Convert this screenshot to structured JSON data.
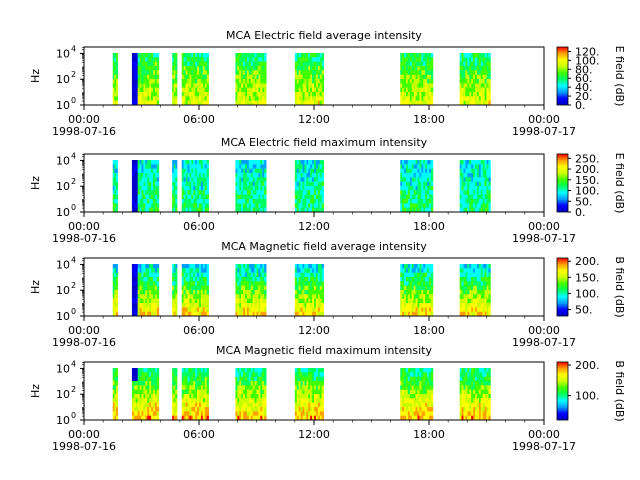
{
  "chart_data": [
    {
      "type": "heatmap",
      "title": "MCA  Electric field average intensity",
      "ylabel": "Hz",
      "colorbar_label": "E field (dB)",
      "colorbar_ticks": [
        "0.",
        "20.",
        "40.",
        "60.",
        "80.",
        "100.",
        "120."
      ],
      "colorbar_range": [
        0,
        130
      ],
      "y_ticks": [
        "10^0",
        "10^2",
        "10^4"
      ],
      "ylim_log10": [
        0,
        4.5
      ],
      "x_ticks": [
        {
          "time": "00:00",
          "date": "1998-07-16"
        },
        {
          "time": "06:00",
          "date": ""
        },
        {
          "time": "12:00",
          "date": ""
        },
        {
          "time": "18:00",
          "date": ""
        },
        {
          "time": "00:00",
          "date": "1998-07-17"
        }
      ],
      "data_intervals_hours": [
        [
          1.5,
          1.75
        ],
        [
          2.5,
          3.9
        ],
        [
          4.6,
          4.85
        ],
        [
          5.1,
          6.5
        ],
        [
          7.9,
          9.5
        ],
        [
          11.0,
          12.5
        ],
        [
          16.5,
          18.2
        ],
        [
          19.6,
          21.2
        ]
      ],
      "level": "mid-high, ~60 dB with bursts to 120 dB"
    },
    {
      "type": "heatmap",
      "title": "MCA  Electric field maximum intensity",
      "ylabel": "Hz",
      "colorbar_label": "E field (dB)",
      "colorbar_ticks": [
        "0.",
        "50.",
        "100.",
        "150.",
        "200.",
        "250."
      ],
      "colorbar_range": [
        0,
        270
      ],
      "y_ticks": [
        "10^0",
        "10^2",
        "10^4"
      ],
      "ylim_log10": [
        0,
        4.5
      ],
      "x_ticks": [
        {
          "time": "00:00",
          "date": "1998-07-16"
        },
        {
          "time": "06:00",
          "date": ""
        },
        {
          "time": "12:00",
          "date": ""
        },
        {
          "time": "18:00",
          "date": ""
        },
        {
          "time": "00:00",
          "date": "1998-07-17"
        }
      ],
      "data_intervals_hours": [
        [
          1.5,
          1.75
        ],
        [
          2.5,
          3.9
        ],
        [
          4.6,
          4.85
        ],
        [
          5.1,
          6.5
        ],
        [
          7.9,
          9.5
        ],
        [
          11.0,
          12.5
        ],
        [
          16.5,
          18.2
        ],
        [
          19.6,
          21.2
        ]
      ],
      "level": "mostly cyan-green, ~80-130 dB"
    },
    {
      "type": "heatmap",
      "title": "MCA  Magnetic field average intensity",
      "ylabel": "Hz",
      "colorbar_label": "B field (dB)",
      "colorbar_ticks": [
        "50.",
        "100.",
        "150.",
        "200."
      ],
      "colorbar_range": [
        30,
        210
      ],
      "y_ticks": [
        "10^0",
        "10^2",
        "10^4"
      ],
      "ylim_log10": [
        0,
        4.5
      ],
      "x_ticks": [
        {
          "time": "00:00",
          "date": "1998-07-16"
        },
        {
          "time": "06:00",
          "date": ""
        },
        {
          "time": "12:00",
          "date": ""
        },
        {
          "time": "18:00",
          "date": ""
        },
        {
          "time": "00:00",
          "date": "1998-07-17"
        }
      ],
      "data_intervals_hours": [
        [
          1.5,
          1.75
        ],
        [
          2.5,
          3.9
        ],
        [
          4.6,
          4.85
        ],
        [
          5.1,
          6.5
        ],
        [
          7.9,
          9.5
        ],
        [
          11.0,
          12.5
        ],
        [
          16.5,
          18.2
        ],
        [
          19.6,
          21.2
        ]
      ],
      "level": "cyan at high freq, green-yellow at low freq"
    },
    {
      "type": "heatmap",
      "title": "MCA  Magnetic field maximum intensity",
      "ylabel": "Hz",
      "colorbar_label": "B field (dB)",
      "colorbar_ticks": [
        "100.",
        "200."
      ],
      "colorbar_range": [
        20,
        210
      ],
      "y_ticks": [
        "10^0",
        "10^2",
        "10^4"
      ],
      "ylim_log10": [
        0,
        4.5
      ],
      "x_ticks": [
        {
          "time": "00:00",
          "date": "1998-07-16"
        },
        {
          "time": "06:00",
          "date": ""
        },
        {
          "time": "12:00",
          "date": ""
        },
        {
          "time": "18:00",
          "date": ""
        },
        {
          "time": "00:00",
          "date": "1998-07-17"
        }
      ],
      "data_intervals_hours": [
        [
          1.5,
          1.75
        ],
        [
          2.5,
          3.9
        ],
        [
          4.6,
          4.85
        ],
        [
          5.1,
          6.5
        ],
        [
          7.9,
          9.5
        ],
        [
          11.0,
          12.5
        ],
        [
          16.5,
          18.2
        ],
        [
          19.6,
          21.2
        ]
      ],
      "level": "green with yellow-red bands at low freq"
    }
  ],
  "x_range_hours": [
    0,
    24
  ],
  "colormap": [
    "#0000c8",
    "#0000ff",
    "#00a0ff",
    "#00ffff",
    "#00ff60",
    "#40ff00",
    "#c8ff00",
    "#ffff00",
    "#ffa000",
    "#ff0000"
  ]
}
